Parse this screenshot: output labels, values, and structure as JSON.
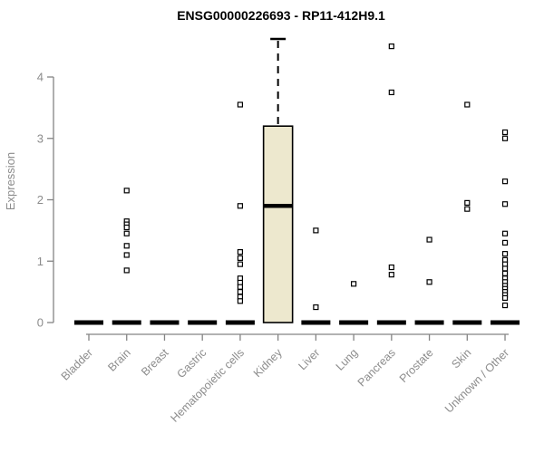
{
  "chart_data": {
    "type": "boxplot",
    "title": "ENSG00000226693 - RP11-412H9.1",
    "ylabel": "Expression",
    "yticks": [
      0,
      1,
      2,
      3,
      4
    ],
    "ytick_labels": [
      "0",
      "1",
      "2",
      "3",
      "4"
    ],
    "ylim": [
      0,
      4.7
    ],
    "grid": false,
    "legend": "none",
    "colors": {
      "box_fill": "#EDE8CE",
      "box_stroke": "#000000",
      "median": "#000000",
      "axis": "#848484",
      "text": "#8c8c8c",
      "title": "#000000",
      "marker_stroke": "#000000",
      "marker_fill": "#ffffff",
      "background": "#ffffff"
    },
    "categories": [
      "Bladder",
      "Brain",
      "Breast",
      "Gastric",
      "Hematopoietic cells",
      "Kidney",
      "Liver",
      "Lung",
      "Pancreas",
      "Prostate",
      "Skin",
      "Unknown / Other"
    ],
    "boxes": [
      {
        "category": "Bladder",
        "q1": 0,
        "median": 0,
        "q3": 0,
        "whisker_low": 0,
        "whisker_high": 0,
        "outliers": []
      },
      {
        "category": "Brain",
        "q1": 0,
        "median": 0,
        "q3": 0,
        "whisker_low": 0,
        "whisker_high": 0,
        "outliers": [
          2.15,
          1.65,
          1.6,
          1.55,
          1.45,
          1.25,
          1.1,
          0.85
        ]
      },
      {
        "category": "Breast",
        "q1": 0,
        "median": 0,
        "q3": 0,
        "whisker_low": 0,
        "whisker_high": 0,
        "outliers": []
      },
      {
        "category": "Gastric",
        "q1": 0,
        "median": 0,
        "q3": 0,
        "whisker_low": 0,
        "whisker_high": 0,
        "outliers": []
      },
      {
        "category": "Hematopoietic cells",
        "q1": 0,
        "median": 0,
        "q3": 0,
        "whisker_low": 0,
        "whisker_high": 0,
        "outliers": [
          3.55,
          1.9,
          1.15,
          1.05,
          0.95,
          0.72,
          0.65,
          0.58,
          0.5,
          0.42,
          0.35
        ]
      },
      {
        "category": "Kidney",
        "q1": 0,
        "median": 1.9,
        "q3": 3.2,
        "whisker_low": 0,
        "whisker_high": 4.62,
        "outliers": []
      },
      {
        "category": "Liver",
        "q1": 0,
        "median": 0,
        "q3": 0,
        "whisker_low": 0,
        "whisker_high": 0,
        "outliers": [
          1.5,
          0.25
        ]
      },
      {
        "category": "Lung",
        "q1": 0,
        "median": 0,
        "q3": 0,
        "whisker_low": 0,
        "whisker_high": 0,
        "outliers": [
          0.63
        ]
      },
      {
        "category": "Pancreas",
        "q1": 0,
        "median": 0,
        "q3": 0,
        "whisker_low": 0,
        "whisker_high": 0,
        "outliers": [
          4.5,
          3.75,
          0.9,
          0.78
        ]
      },
      {
        "category": "Prostate",
        "q1": 0,
        "median": 0,
        "q3": 0,
        "whisker_low": 0,
        "whisker_high": 0,
        "outliers": [
          1.35,
          0.66
        ]
      },
      {
        "category": "Skin",
        "q1": 0,
        "median": 0,
        "q3": 0,
        "whisker_low": 0,
        "whisker_high": 0,
        "outliers": [
          3.55,
          1.95,
          1.85
        ]
      },
      {
        "category": "Unknown / Other",
        "q1": 0,
        "median": 0,
        "q3": 0,
        "whisker_low": 0,
        "whisker_high": 0,
        "outliers": [
          3.1,
          3.0,
          2.3,
          1.93,
          1.45,
          1.3,
          1.12,
          1.02,
          0.95,
          0.88,
          0.8,
          0.72,
          0.66,
          0.6,
          0.55,
          0.5,
          0.45,
          0.4,
          0.28
        ]
      }
    ]
  }
}
